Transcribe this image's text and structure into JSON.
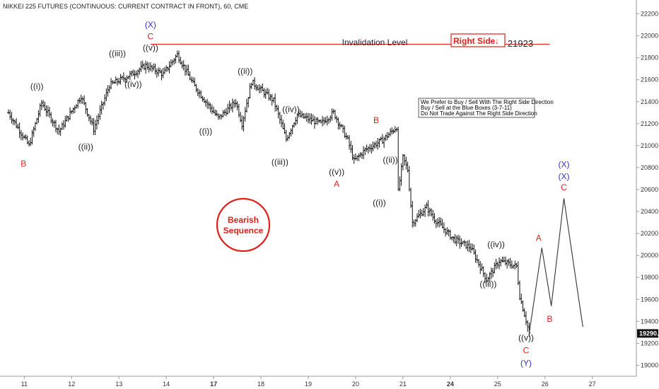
{
  "chart_data": {
    "type": "ohlc",
    "title": "NIKKEI 225 FUTURES (CONTINUOUS: CURRENT CONTRACT IN FRONT), 60, CME",
    "y_axis": {
      "ticks": [
        "22200.0",
        "22000.0",
        "21800.0",
        "21600.0",
        "21400.0",
        "21200.0",
        "21000.0",
        "20800.0",
        "20600.0",
        "20400.0",
        "20200.0",
        "20000.0",
        "19800.0",
        "19600.0",
        "19400.0",
        "19200.0",
        "19000.0"
      ],
      "ylim": [
        18900,
        22300
      ],
      "last_price_label": "19290.0",
      "last_price": 19290
    },
    "x_axis": {
      "ticks": [
        {
          "label": "11",
          "bold": false
        },
        {
          "label": "12",
          "bold": false
        },
        {
          "label": "13",
          "bold": false
        },
        {
          "label": "14",
          "bold": false
        },
        {
          "label": "17",
          "bold": true
        },
        {
          "label": "18",
          "bold": false
        },
        {
          "label": "19",
          "bold": false
        },
        {
          "label": "20",
          "bold": false
        },
        {
          "label": "21",
          "bold": false
        },
        {
          "label": "24",
          "bold": true
        },
        {
          "label": "25",
          "bold": false
        },
        {
          "label": "26",
          "bold": false
        },
        {
          "label": "27",
          "bold": false
        }
      ]
    },
    "price_path": [
      [
        0,
        21300
      ],
      [
        1.3,
        21000
      ],
      [
        2.1,
        21390
      ],
      [
        3.2,
        21130
      ],
      [
        4.6,
        21450
      ],
      [
        5.4,
        21150
      ],
      [
        6.4,
        21550
      ],
      [
        7.8,
        21650
      ],
      [
        8.7,
        21730
      ],
      [
        9.8,
        21650
      ],
      [
        10.7,
        21830
      ],
      [
        11.7,
        21560
      ],
      [
        12.5,
        21400
      ],
      [
        13.3,
        21250
      ],
      [
        14.4,
        21400
      ],
      [
        14.8,
        21200
      ],
      [
        15.4,
        21580
      ],
      [
        16.8,
        21410
      ],
      [
        17.6,
        21060
      ],
      [
        18.3,
        21280
      ],
      [
        19.8,
        21200
      ],
      [
        20.6,
        21300
      ],
      [
        21.5,
        21050
      ],
      [
        21.9,
        20860
      ],
      [
        22.6,
        20960
      ],
      [
        23.7,
        21050
      ],
      [
        24.6,
        21170
      ],
      [
        24.7,
        20580
      ],
      [
        25.0,
        20890
      ],
      [
        25.3,
        20780
      ],
      [
        25.6,
        20300
      ],
      [
        26.5,
        20440
      ],
      [
        27.0,
        20330
      ],
      [
        28.2,
        20150
      ],
      [
        29.3,
        20070
      ],
      [
        30.3,
        19780
      ],
      [
        31.1,
        19950
      ],
      [
        32.2,
        19900
      ],
      [
        32.4,
        19630
      ],
      [
        32.8,
        19410
      ],
      [
        33.0,
        19290
      ]
    ],
    "projection_path": [
      [
        33.0,
        19290
      ],
      [
        33.8,
        20070
      ],
      [
        34.4,
        19540
      ],
      [
        35.2,
        20520
      ],
      [
        36.4,
        19350
      ]
    ],
    "wave_labels": [
      {
        "text": "B",
        "color": "#e0201b",
        "t": 0.95,
        "p": 20835
      },
      {
        "text": "((i))",
        "color": "#222222",
        "t": 1.8,
        "p": 21540
      },
      {
        "text": "((ii))",
        "color": "#222222",
        "t": 4.9,
        "p": 20990
      },
      {
        "text": "((iii))",
        "color": "#222222",
        "t": 6.9,
        "p": 21840
      },
      {
        "text": "((iv))",
        "color": "#222222",
        "t": 7.9,
        "p": 21560
      },
      {
        "text": "(X)",
        "color": "#3333cc",
        "t": 9.0,
        "p": 22100
      },
      {
        "text": "C",
        "color": "#e0201b",
        "t": 9.0,
        "p": 21995
      },
      {
        "text": "((v))",
        "color": "#222222",
        "t": 9.0,
        "p": 21890
      },
      {
        "text": "((i))",
        "color": "#222222",
        "t": 12.5,
        "p": 21130
      },
      {
        "text": "((ii))",
        "color": "#222222",
        "t": 15.0,
        "p": 21680
      },
      {
        "text": "((iii))",
        "color": "#222222",
        "t": 17.2,
        "p": 20850
      },
      {
        "text": "((iv))",
        "color": "#222222",
        "t": 17.9,
        "p": 21330
      },
      {
        "text": "((v))",
        "color": "#222222",
        "t": 20.8,
        "p": 20760
      },
      {
        "text": "A",
        "color": "#e0201b",
        "t": 20.8,
        "p": 20650
      },
      {
        "text": "B",
        "color": "#e0201b",
        "t": 23.3,
        "p": 21230
      },
      {
        "text": "((ii))",
        "color": "#222222",
        "t": 24.2,
        "p": 20870
      },
      {
        "text": "((i))",
        "color": "#222222",
        "t": 23.5,
        "p": 20480
      },
      {
        "text": "((iii))",
        "color": "#222222",
        "t": 30.4,
        "p": 19740
      },
      {
        "text": "((iv))",
        "color": "#222222",
        "t": 30.9,
        "p": 20100
      },
      {
        "text": "((v))",
        "color": "#222222",
        "t": 32.8,
        "p": 19250
      },
      {
        "text": "C",
        "color": "#e0201b",
        "t": 32.8,
        "p": 19135
      },
      {
        "text": "(Y)",
        "color": "#3333cc",
        "t": 32.8,
        "p": 19020
      },
      {
        "text": "A",
        "color": "#e0201b",
        "t": 33.6,
        "p": 20160
      },
      {
        "text": "B",
        "color": "#e0201b",
        "t": 34.3,
        "p": 19420
      },
      {
        "text": "(X)",
        "color": "#3333cc",
        "t": 35.2,
        "p": 20830
      },
      {
        "text": "(X)",
        "color": "#3333cc",
        "t": 35.2,
        "p": 20720
      },
      {
        "text": "C",
        "color": "#e0201b",
        "t": 35.2,
        "p": 20620
      }
    ],
    "invalidation": {
      "label": "Invalidation Level",
      "value_label": "21923",
      "level": 21923,
      "t_start": 9.0,
      "t_end": 34.3
    },
    "right_side_box": {
      "label": "Right Side",
      "arrow": "↓"
    },
    "notes": [
      "We Prefer to Buy / Sell With The Right Side Direction",
      "Buy / Sell at the Blue Boxes (3-7-11)",
      "Do Not Trade Against The Right Side Direction"
    ],
    "badge": {
      "line1": "Bearish",
      "line2": "Sequence"
    },
    "colors": {
      "red": "#e0201b",
      "blue": "#3333cc",
      "bars": "#111111",
      "projection": "#333333"
    }
  }
}
